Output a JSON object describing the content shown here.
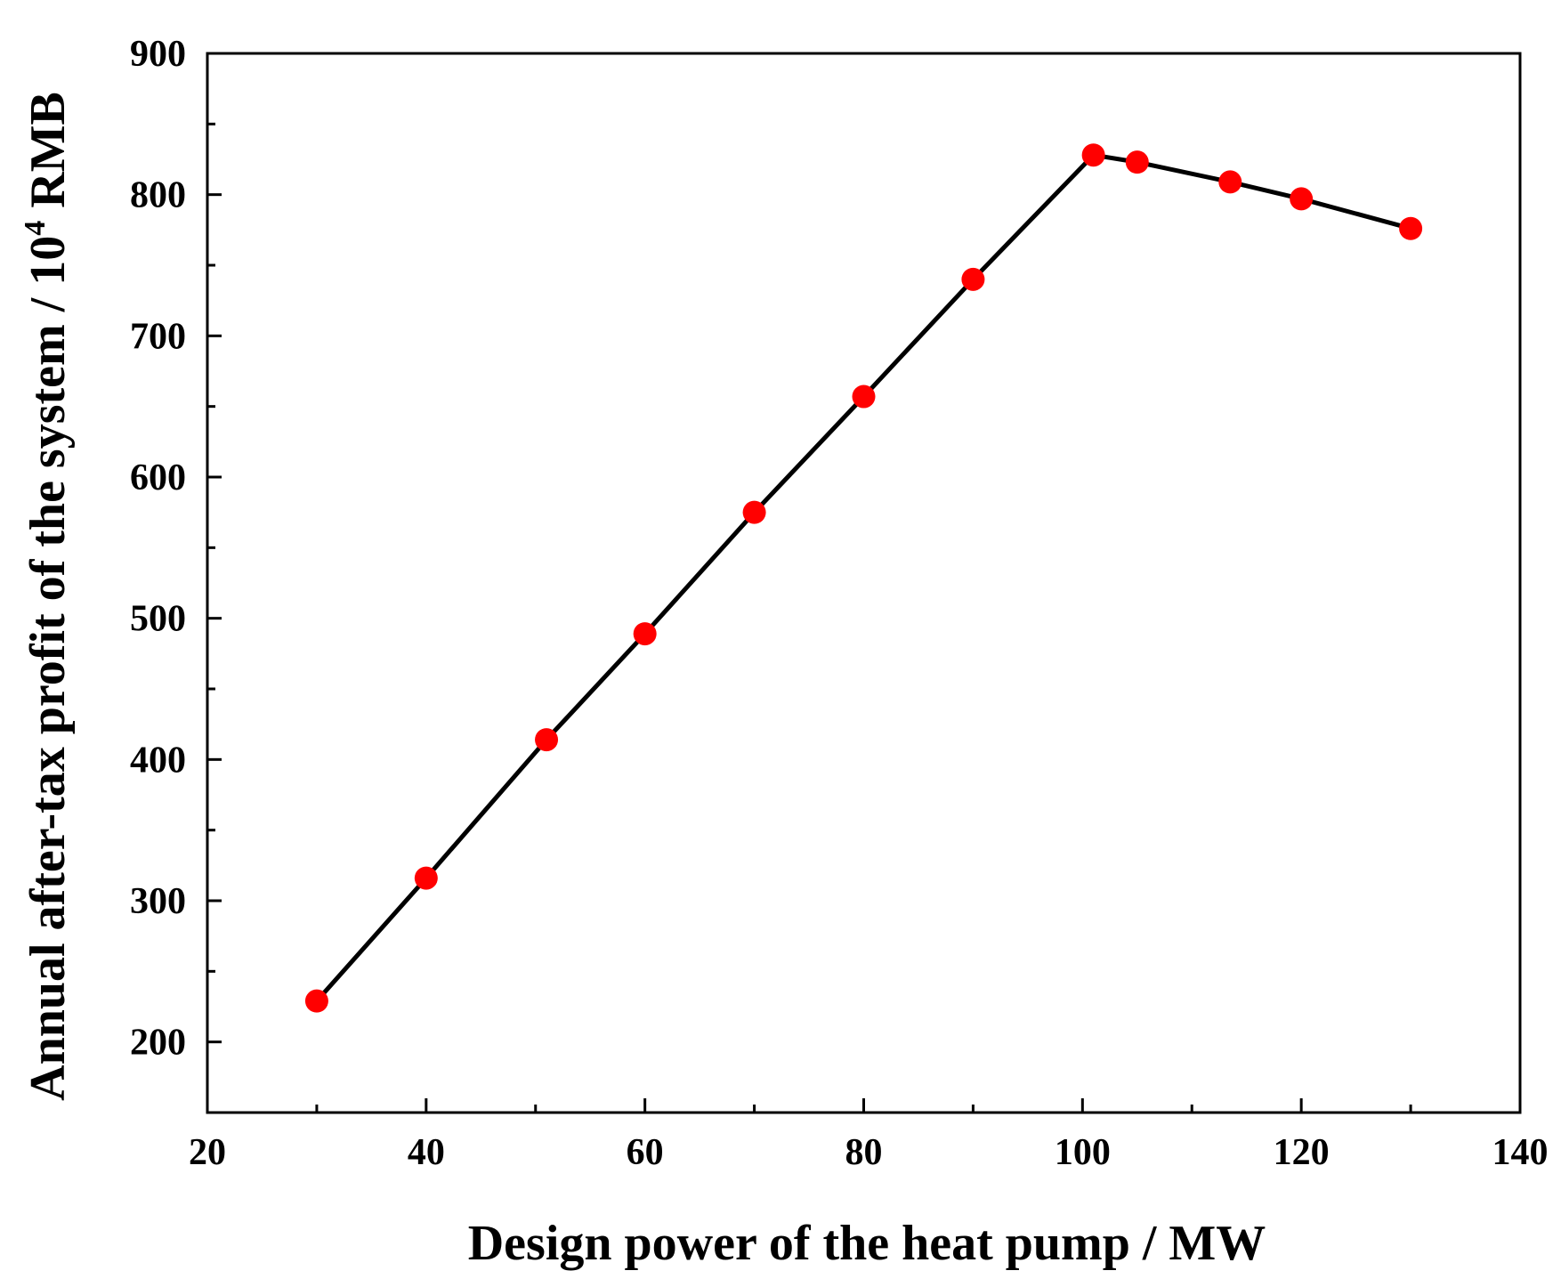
{
  "chart_data": {
    "type": "line",
    "title": "",
    "xlabel": "Design power of the heat pump / MW",
    "ylabel_prefix": "Annual after-tax profit of the system / 10",
    "ylabel_exponent": "4",
    "ylabel_suffix": " RMB",
    "xlim": [
      20,
      140
    ],
    "ylim": [
      150,
      900
    ],
    "x_ticks": [
      20,
      40,
      60,
      80,
      100,
      120,
      140
    ],
    "y_ticks": [
      200,
      300,
      400,
      500,
      600,
      700,
      800,
      900
    ],
    "x_tick_labels": [
      "20",
      "40",
      "60",
      "80",
      "100",
      "120",
      "140"
    ],
    "y_tick_labels": [
      "200",
      "300",
      "400",
      "500",
      "600",
      "700",
      "800",
      "900"
    ],
    "series": [
      {
        "name": "Annual after-tax profit",
        "line_color": "#000000",
        "marker_color": "#ff0000",
        "x": [
          30,
          40,
          51,
          60,
          70,
          80,
          90,
          101,
          105,
          113.5,
          120,
          130
        ],
        "y": [
          229,
          316,
          414,
          489,
          575,
          657,
          740,
          828,
          823,
          809,
          797,
          776
        ]
      }
    ],
    "grid": false,
    "legend": "none"
  }
}
